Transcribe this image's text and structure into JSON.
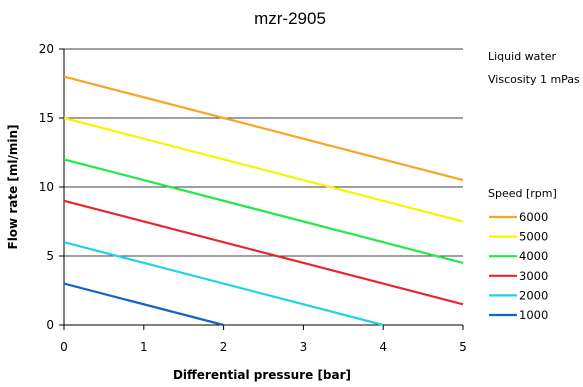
{
  "chart_data": {
    "type": "line",
    "title": "mzr-2905",
    "xlabel": "Differential pressure [bar]",
    "ylabel": "Flow rate [ml/min]",
    "xlim": [
      0,
      5
    ],
    "ylim": [
      0,
      20
    ],
    "x_ticks": [
      "0",
      "1",
      "2",
      "3",
      "4",
      "5"
    ],
    "y_ticks": [
      "0",
      "5",
      "10",
      "15",
      "20"
    ],
    "grid": "horizontal",
    "annotations": [
      "Liquid water",
      "Viscosity 1 mPas"
    ],
    "legend_title": "Speed [rpm]",
    "legend_position": "right",
    "series": [
      {
        "name": "6000",
        "color": "#f5a623",
        "points": [
          [
            0,
            18
          ],
          [
            5,
            10.5
          ]
        ]
      },
      {
        "name": "5000",
        "color": "#f5f500",
        "points": [
          [
            0,
            15
          ],
          [
            5,
            7.5
          ]
        ]
      },
      {
        "name": "4000",
        "color": "#22e84a",
        "points": [
          [
            0,
            12
          ],
          [
            5,
            4.5
          ]
        ]
      },
      {
        "name": "3000",
        "color": "#e8262e",
        "points": [
          [
            0,
            9
          ],
          [
            5,
            1.5
          ]
        ]
      },
      {
        "name": "2000",
        "color": "#22d3e6",
        "points": [
          [
            0,
            6
          ],
          [
            4,
            0
          ]
        ]
      },
      {
        "name": "1000",
        "color": "#1464c8",
        "points": [
          [
            0,
            3
          ],
          [
            2,
            0
          ]
        ]
      }
    ]
  }
}
